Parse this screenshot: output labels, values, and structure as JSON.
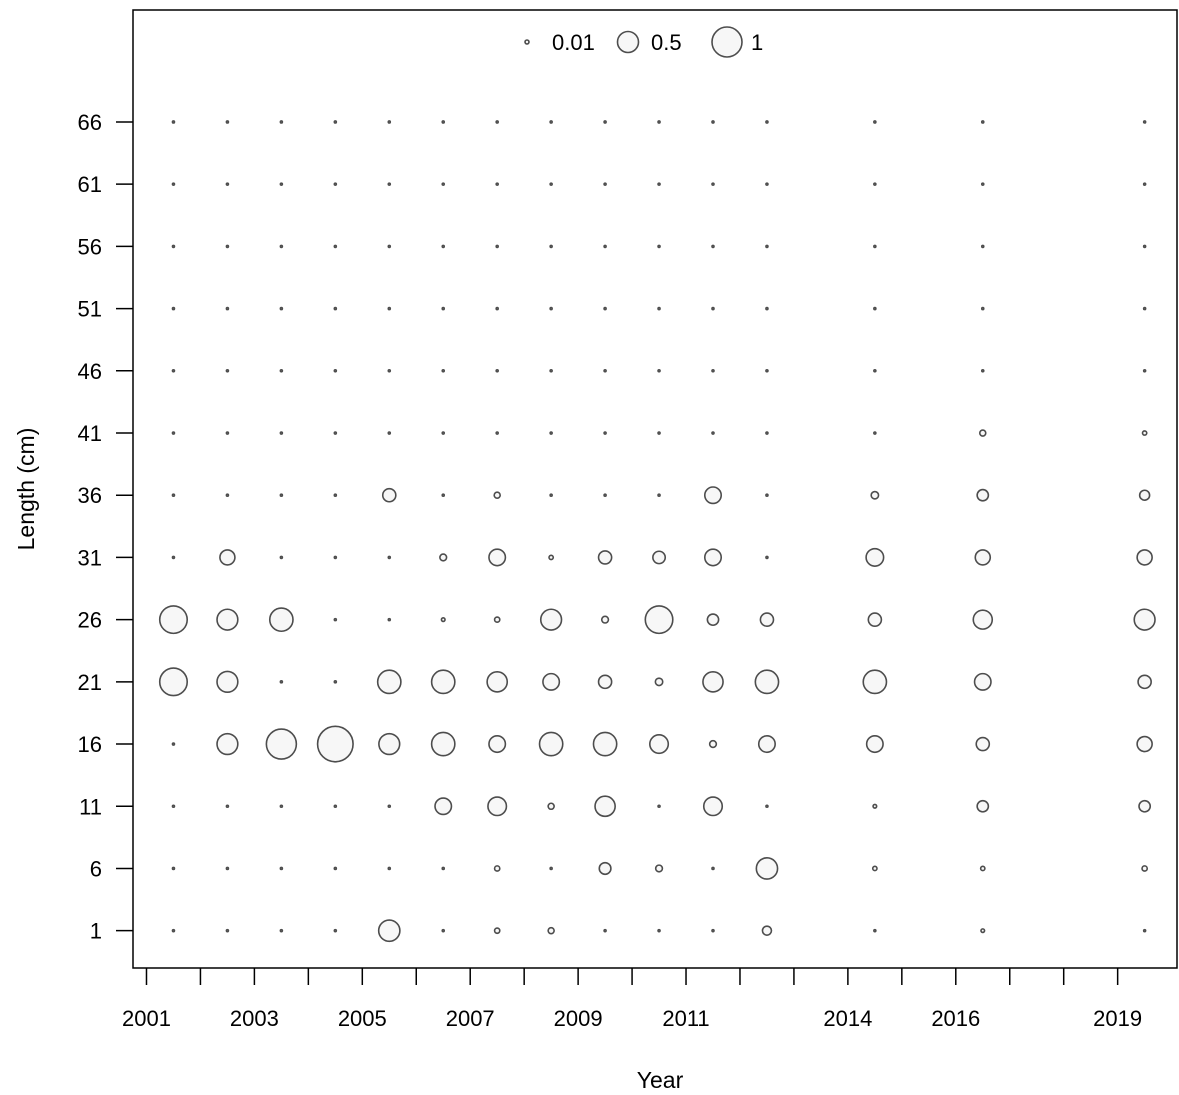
{
  "chart_data": {
    "type": "scatter",
    "subtype": "bubble",
    "title": "",
    "xlabel": "Year",
    "ylabel": "Length (cm)",
    "x_ticks": [
      2001,
      2002,
      2003,
      2004,
      2005,
      2006,
      2007,
      2008,
      2009,
      2010,
      2011,
      2012,
      2013,
      2014,
      2015,
      2016,
      2017,
      2018,
      2019
    ],
    "x_tick_labels": [
      "2001",
      "",
      "2003",
      "",
      "2005",
      "",
      "2007",
      "",
      "2009",
      "",
      "2011",
      "",
      "",
      "2014",
      "",
      "2016",
      "",
      "",
      "2019"
    ],
    "xlim": [
      2000.75,
      2020.1
    ],
    "y_ticks": [
      1,
      6,
      11,
      16,
      21,
      26,
      31,
      36,
      41,
      46,
      51,
      56,
      61,
      66
    ],
    "ylim": [
      -2,
      75
    ],
    "legend": {
      "placement": "top-center",
      "entries": [
        {
          "label": "0.01",
          "value": 0.01
        },
        {
          "label": "0.5",
          "value": 0.5
        },
        {
          "label": "1",
          "value": 1
        }
      ]
    },
    "grid": false,
    "years": [
      2001.5,
      2002.5,
      2003.5,
      2004.5,
      2005.5,
      2006.5,
      2007.5,
      2008.5,
      2009.5,
      2010.5,
      2011.5,
      2012.5,
      2014.5,
      2016.5,
      2019.5
    ],
    "lengths": [
      1,
      6,
      11,
      16,
      21,
      26,
      31,
      36,
      41,
      46,
      51,
      56,
      61,
      66
    ],
    "values": [
      [
        0.0,
        0.0,
        0.0,
        0.0,
        0.5,
        0.0,
        0.03,
        0.04,
        0.0,
        0.0,
        0.0,
        0.09,
        0.0,
        0.01,
        0.0
      ],
      [
        0.0,
        0.0,
        0.0,
        0.0,
        0.0,
        0.0,
        0.03,
        0.0,
        0.15,
        0.05,
        0.0,
        0.5,
        0.02,
        0.02,
        0.03
      ],
      [
        0.0,
        0.0,
        0.0,
        0.0,
        0.0,
        0.3,
        0.38,
        0.04,
        0.45,
        0.0,
        0.38,
        0.0,
        0.01,
        0.14,
        0.14
      ],
      [
        0.0,
        0.48,
        1.0,
        1.4,
        0.48,
        0.6,
        0.3,
        0.6,
        0.6,
        0.38,
        0.05,
        0.3,
        0.3,
        0.19,
        0.25
      ],
      [
        0.84,
        0.48,
        0.0,
        0.0,
        0.6,
        0.6,
        0.45,
        0.3,
        0.19,
        0.06,
        0.45,
        0.6,
        0.6,
        0.3,
        0.19
      ],
      [
        0.84,
        0.48,
        0.6,
        0.0,
        0.0,
        0.01,
        0.03,
        0.48,
        0.05,
        0.84,
        0.14,
        0.19,
        0.19,
        0.4,
        0.48
      ],
      [
        0.0,
        0.25,
        0.0,
        0.0,
        0.0,
        0.05,
        0.3,
        0.02,
        0.19,
        0.17,
        0.3,
        0.0,
        0.34,
        0.25,
        0.25
      ],
      [
        0.0,
        0.0,
        0.0,
        0.0,
        0.19,
        0.0,
        0.04,
        0.0,
        0.0,
        0.0,
        0.3,
        0.0,
        0.06,
        0.14,
        0.11
      ],
      [
        0.0,
        0.0,
        0.0,
        0.0,
        0.0,
        0.0,
        0.0,
        0.0,
        0.0,
        0.0,
        0.0,
        0.0,
        0.0,
        0.04,
        0.02
      ],
      [
        0.0,
        0.0,
        0.0,
        0.0,
        0.0,
        0.0,
        0.0,
        0.0,
        0.0,
        0.0,
        0.0,
        0.0,
        0.0,
        0.0,
        0.0
      ],
      [
        0.0,
        0.0,
        0.0,
        0.0,
        0.0,
        0.0,
        0.0,
        0.0,
        0.0,
        0.0,
        0.0,
        0.0,
        0.0,
        0.0,
        0.0
      ],
      [
        0.0,
        0.0,
        0.0,
        0.0,
        0.0,
        0.0,
        0.0,
        0.0,
        0.0,
        0.0,
        0.0,
        0.0,
        0.0,
        0.0,
        0.0
      ],
      [
        0.0,
        0.0,
        0.0,
        0.0,
        0.0,
        0.0,
        0.0,
        0.0,
        0.0,
        0.0,
        0.0,
        0.0,
        0.0,
        0.0,
        0.0
      ],
      [
        0.0,
        0.0,
        0.0,
        0.0,
        0.0,
        0.0,
        0.0,
        0.0,
        0.0,
        0.0,
        0.0,
        0.0,
        0.0,
        0.0,
        0.0
      ]
    ]
  }
}
